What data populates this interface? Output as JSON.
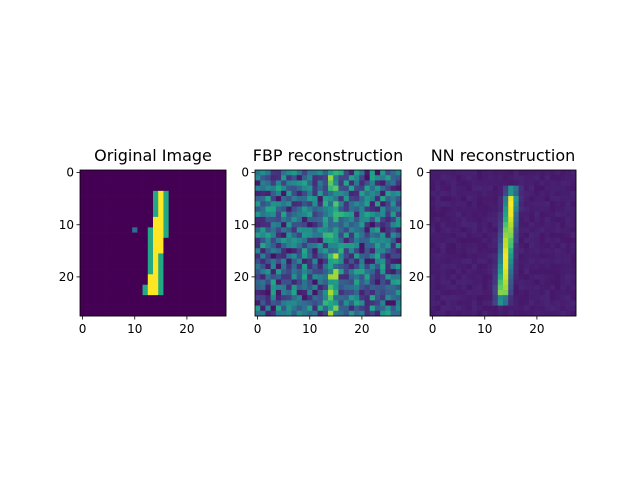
{
  "chart_data": [
    {
      "type": "heatmap",
      "title": "Original Image",
      "rows": 28,
      "cols": 28,
      "xlim": [
        -0.5,
        27.5
      ],
      "ylim": [
        27.5,
        -0.5
      ],
      "xticks": [
        0,
        10,
        20
      ],
      "yticks": [
        0,
        10,
        20
      ],
      "colormap": "viridis",
      "content": "digit-one-sharp"
    },
    {
      "type": "heatmap",
      "title": "FBP reconstruction",
      "rows": 28,
      "cols": 28,
      "xlim": [
        -0.5,
        27.5
      ],
      "ylim": [
        27.5,
        -0.5
      ],
      "xticks": [
        0,
        10,
        20
      ],
      "yticks": [
        0,
        10,
        20
      ],
      "colormap": "viridis",
      "content": "digit-one-noisy"
    },
    {
      "type": "heatmap",
      "title": "NN reconstruction",
      "rows": 28,
      "cols": 28,
      "xlim": [
        -0.5,
        27.5
      ],
      "ylim": [
        27.5,
        -0.5
      ],
      "xticks": [
        0,
        10,
        20
      ],
      "yticks": [
        0,
        10,
        20
      ],
      "colormap": "viridis",
      "content": "digit-one-smooth"
    }
  ]
}
